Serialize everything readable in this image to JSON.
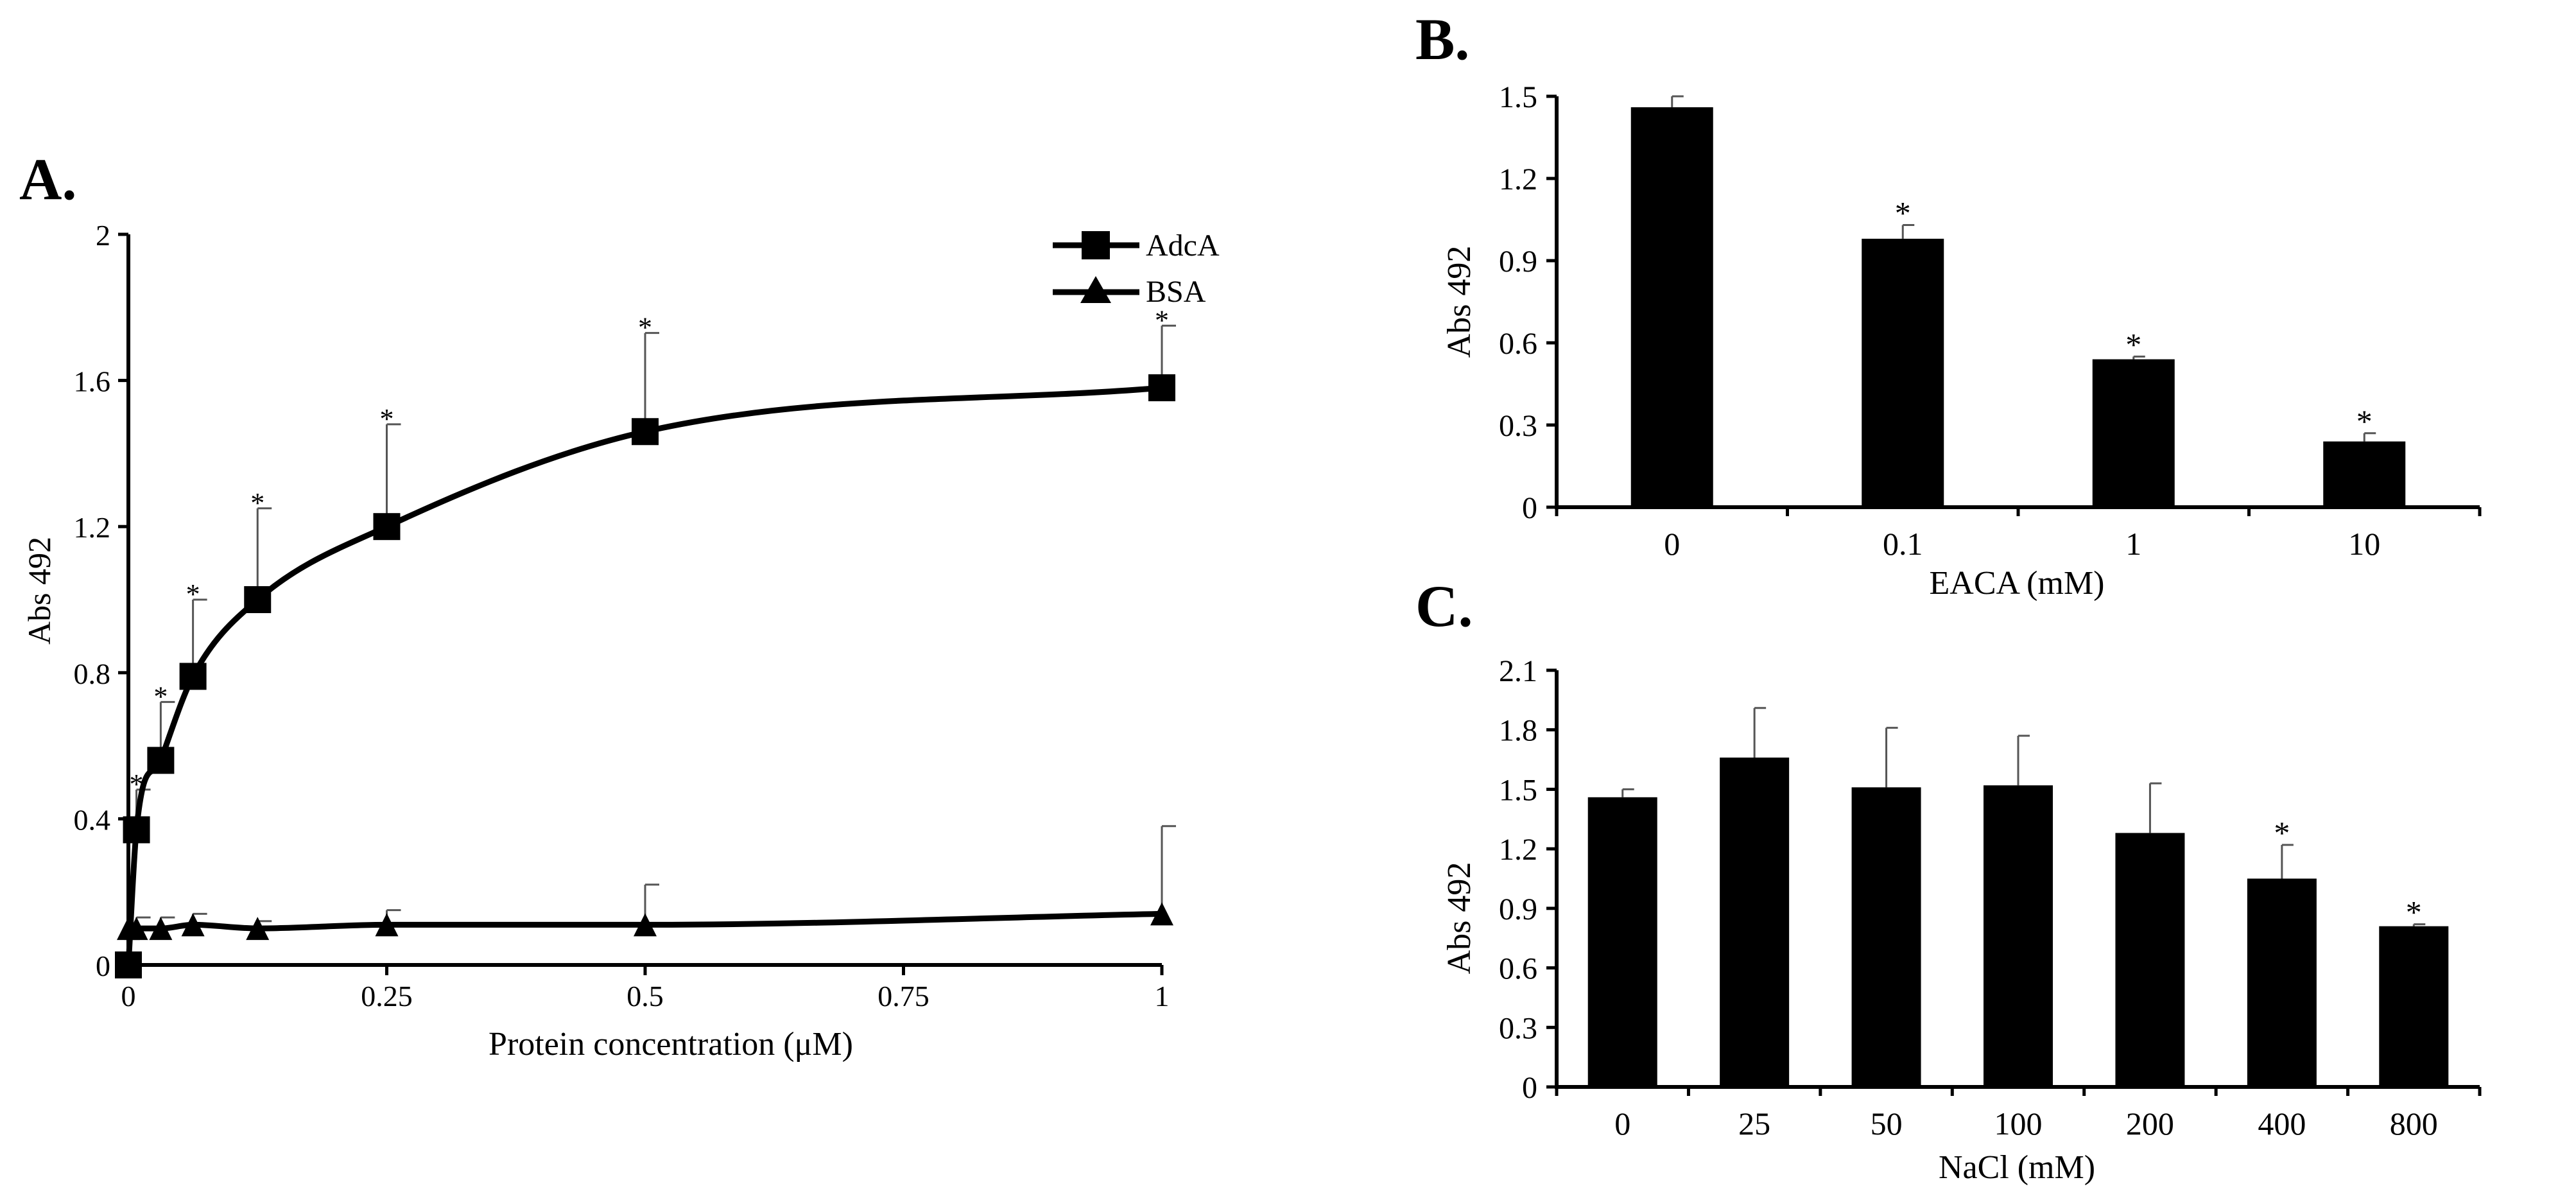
{
  "chart_data": [
    {
      "panel_label": "A.",
      "type": "line",
      "xlabel": "Protein concentration (μM)",
      "ylabel": "Abs 492",
      "xlim": [
        0,
        1
      ],
      "ylim": [
        0,
        2
      ],
      "xticks": [
        0,
        0.25,
        0.5,
        0.75,
        1
      ],
      "xtick_labels": [
        "0",
        "0.25",
        "0.5",
        "0.75",
        "1"
      ],
      "yticks": [
        0,
        0.4,
        0.8,
        1.2,
        1.6,
        2
      ],
      "ytick_labels": [
        "0",
        "0.4",
        "0.8",
        "1.2",
        "1.6",
        "2"
      ],
      "legend_position": "top-right",
      "series": [
        {
          "name": "AdcA",
          "marker": "square",
          "x": [
            0,
            0.0078,
            0.0313,
            0.0625,
            0.125,
            0.25,
            0.5,
            1
          ],
          "y": [
            0.0,
            0.37,
            0.56,
            0.79,
            1.0,
            1.2,
            1.46,
            1.58
          ],
          "error": [
            0.0,
            0.11,
            0.16,
            0.21,
            0.25,
            0.28,
            0.27,
            0.17
          ],
          "significant": [
            false,
            true,
            true,
            true,
            true,
            true,
            true,
            true
          ]
        },
        {
          "name": "BSA",
          "marker": "triangle",
          "x": [
            0,
            0.0078,
            0.0313,
            0.0625,
            0.125,
            0.25,
            0.5,
            1
          ],
          "y": [
            0.1,
            0.1,
            0.1,
            0.11,
            0.1,
            0.11,
            0.11,
            0.14
          ],
          "error": [
            0.0,
            0.03,
            0.03,
            0.03,
            0.02,
            0.04,
            0.11,
            0.24
          ],
          "significant": [
            false,
            false,
            false,
            false,
            false,
            false,
            false,
            false
          ]
        }
      ],
      "significance_mark": "*"
    },
    {
      "panel_label": "B.",
      "type": "bar",
      "xlabel": "EACA (mM)",
      "ylabel": "Abs 492",
      "categories": [
        "0",
        "0.1",
        "1",
        "10"
      ],
      "values": [
        1.46,
        0.98,
        0.54,
        0.24
      ],
      "error": [
        0.04,
        0.05,
        0.01,
        0.03
      ],
      "significant": [
        false,
        true,
        true,
        true
      ],
      "ylim": [
        0,
        1.5
      ],
      "yticks": [
        0,
        0.3,
        0.6,
        0.9,
        1.2,
        1.5
      ],
      "ytick_labels": [
        "0",
        "0.3",
        "0.6",
        "0.9",
        "1.2",
        "1.5"
      ],
      "significance_mark": "*"
    },
    {
      "panel_label": "C.",
      "type": "bar",
      "xlabel": "NaCl (mM)",
      "ylabel": "Abs 492",
      "categories": [
        "0",
        "25",
        "50",
        "100",
        "200",
        "400",
        "800"
      ],
      "values": [
        1.46,
        1.66,
        1.51,
        1.52,
        1.28,
        1.05,
        0.81
      ],
      "error": [
        0.04,
        0.25,
        0.3,
        0.25,
        0.25,
        0.17,
        0.01
      ],
      "significant": [
        false,
        false,
        false,
        false,
        false,
        true,
        true
      ],
      "ylim": [
        0,
        2.1
      ],
      "yticks": [
        0,
        0.3,
        0.6,
        0.9,
        1.2,
        1.5,
        1.8,
        2.1
      ],
      "ytick_labels": [
        "0",
        "0.3",
        "0.6",
        "0.9",
        "1.2",
        "1.5",
        "1.8",
        "2.1"
      ],
      "significance_mark": "*"
    }
  ]
}
